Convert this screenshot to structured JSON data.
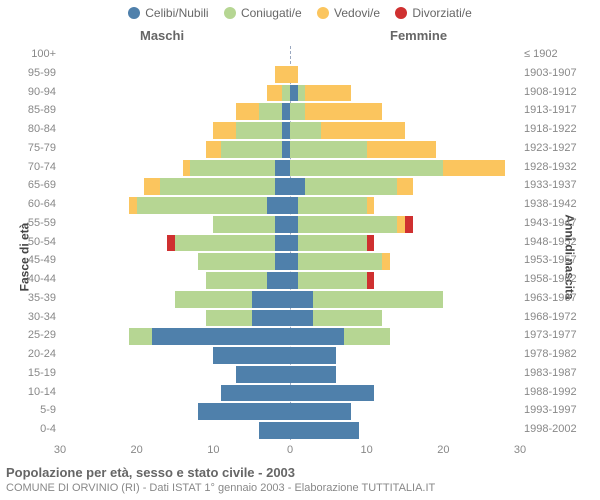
{
  "type": "population-pyramid",
  "legend": [
    {
      "label": "Celibi/Nubili",
      "color": "#4f80ab"
    },
    {
      "label": "Coniugati/e",
      "color": "#b6d693"
    },
    {
      "label": "Vedovi/e",
      "color": "#fbc55e"
    },
    {
      "label": "Divorziati/e",
      "color": "#cf3030"
    }
  ],
  "gender_labels": {
    "male": "Maschi",
    "female": "Femmine"
  },
  "y_axis_left_label": "Fasce di età",
  "y_axis_right_label": "Anni di nascita",
  "x_max": 30,
  "x_ticks": [
    30,
    20,
    10,
    0,
    10,
    20,
    30
  ],
  "title": "Popolazione per età, sesso e stato civile - 2003",
  "subtitle": "COMUNE DI ORVINIO (RI) - Dati ISTAT 1° gennaio 2003 - Elaborazione TUTTITALIA.IT",
  "colors": {
    "celibi": "#4f80ab",
    "coniugati": "#b6d693",
    "vedovi": "#fbc55e",
    "divorziati": "#cf3030",
    "tick_text": "#888888",
    "zero_line": "#9aa8c0",
    "background": "#ffffff"
  },
  "font_sizes": {
    "legend": 12,
    "gender": 13,
    "ticks": 11,
    "axis_label": 12,
    "title": 13,
    "subtitle": 11
  },
  "rows": [
    {
      "age": "100+",
      "birth": "≤ 1902",
      "m": [
        0,
        0,
        0,
        0
      ],
      "f": [
        0,
        0,
        0,
        0
      ]
    },
    {
      "age": "95-99",
      "birth": "1903-1907",
      "m": [
        0,
        0,
        2,
        0
      ],
      "f": [
        0,
        0,
        1,
        0
      ]
    },
    {
      "age": "90-94",
      "birth": "1908-1912",
      "m": [
        0,
        1,
        2,
        0
      ],
      "f": [
        1,
        1,
        6,
        0
      ]
    },
    {
      "age": "85-89",
      "birth": "1913-1917",
      "m": [
        1,
        3,
        3,
        0
      ],
      "f": [
        0,
        2,
        10,
        0
      ]
    },
    {
      "age": "80-84",
      "birth": "1918-1922",
      "m": [
        1,
        6,
        3,
        0
      ],
      "f": [
        0,
        4,
        11,
        0
      ]
    },
    {
      "age": "75-79",
      "birth": "1923-1927",
      "m": [
        1,
        8,
        2,
        0
      ],
      "f": [
        0,
        10,
        9,
        0
      ]
    },
    {
      "age": "70-74",
      "birth": "1928-1932",
      "m": [
        2,
        11,
        1,
        0
      ],
      "f": [
        0,
        20,
        8,
        0
      ]
    },
    {
      "age": "65-69",
      "birth": "1933-1937",
      "m": [
        2,
        15,
        2,
        0
      ],
      "f": [
        2,
        12,
        2,
        0
      ]
    },
    {
      "age": "60-64",
      "birth": "1938-1942",
      "m": [
        3,
        17,
        1,
        0
      ],
      "f": [
        1,
        9,
        1,
        0
      ]
    },
    {
      "age": "55-59",
      "birth": "1943-1947",
      "m": [
        2,
        8,
        0,
        0
      ],
      "f": [
        1,
        13,
        1,
        1
      ]
    },
    {
      "age": "50-54",
      "birth": "1948-1952",
      "m": [
        2,
        13,
        0,
        1
      ],
      "f": [
        1,
        9,
        0,
        1
      ]
    },
    {
      "age": "45-49",
      "birth": "1953-1957",
      "m": [
        2,
        10,
        0,
        0
      ],
      "f": [
        1,
        11,
        1,
        0
      ]
    },
    {
      "age": "40-44",
      "birth": "1958-1962",
      "m": [
        3,
        8,
        0,
        0
      ],
      "f": [
        1,
        9,
        0,
        1
      ]
    },
    {
      "age": "35-39",
      "birth": "1963-1967",
      "m": [
        5,
        10,
        0,
        0
      ],
      "f": [
        3,
        17,
        0,
        0
      ]
    },
    {
      "age": "30-34",
      "birth": "1968-1972",
      "m": [
        5,
        6,
        0,
        0
      ],
      "f": [
        3,
        9,
        0,
        0
      ]
    },
    {
      "age": "25-29",
      "birth": "1973-1977",
      "m": [
        18,
        3,
        0,
        0
      ],
      "f": [
        7,
        6,
        0,
        0
      ]
    },
    {
      "age": "20-24",
      "birth": "1978-1982",
      "m": [
        10,
        0,
        0,
        0
      ],
      "f": [
        6,
        0,
        0,
        0
      ]
    },
    {
      "age": "15-19",
      "birth": "1983-1987",
      "m": [
        7,
        0,
        0,
        0
      ],
      "f": [
        6,
        0,
        0,
        0
      ]
    },
    {
      "age": "10-14",
      "birth": "1988-1992",
      "m": [
        9,
        0,
        0,
        0
      ],
      "f": [
        11,
        0,
        0,
        0
      ]
    },
    {
      "age": "5-9",
      "birth": "1993-1997",
      "m": [
        12,
        0,
        0,
        0
      ],
      "f": [
        8,
        0,
        0,
        0
      ]
    },
    {
      "age": "0-4",
      "birth": "1998-2002",
      "m": [
        4,
        0,
        0,
        0
      ],
      "f": [
        9,
        0,
        0,
        0
      ]
    }
  ]
}
